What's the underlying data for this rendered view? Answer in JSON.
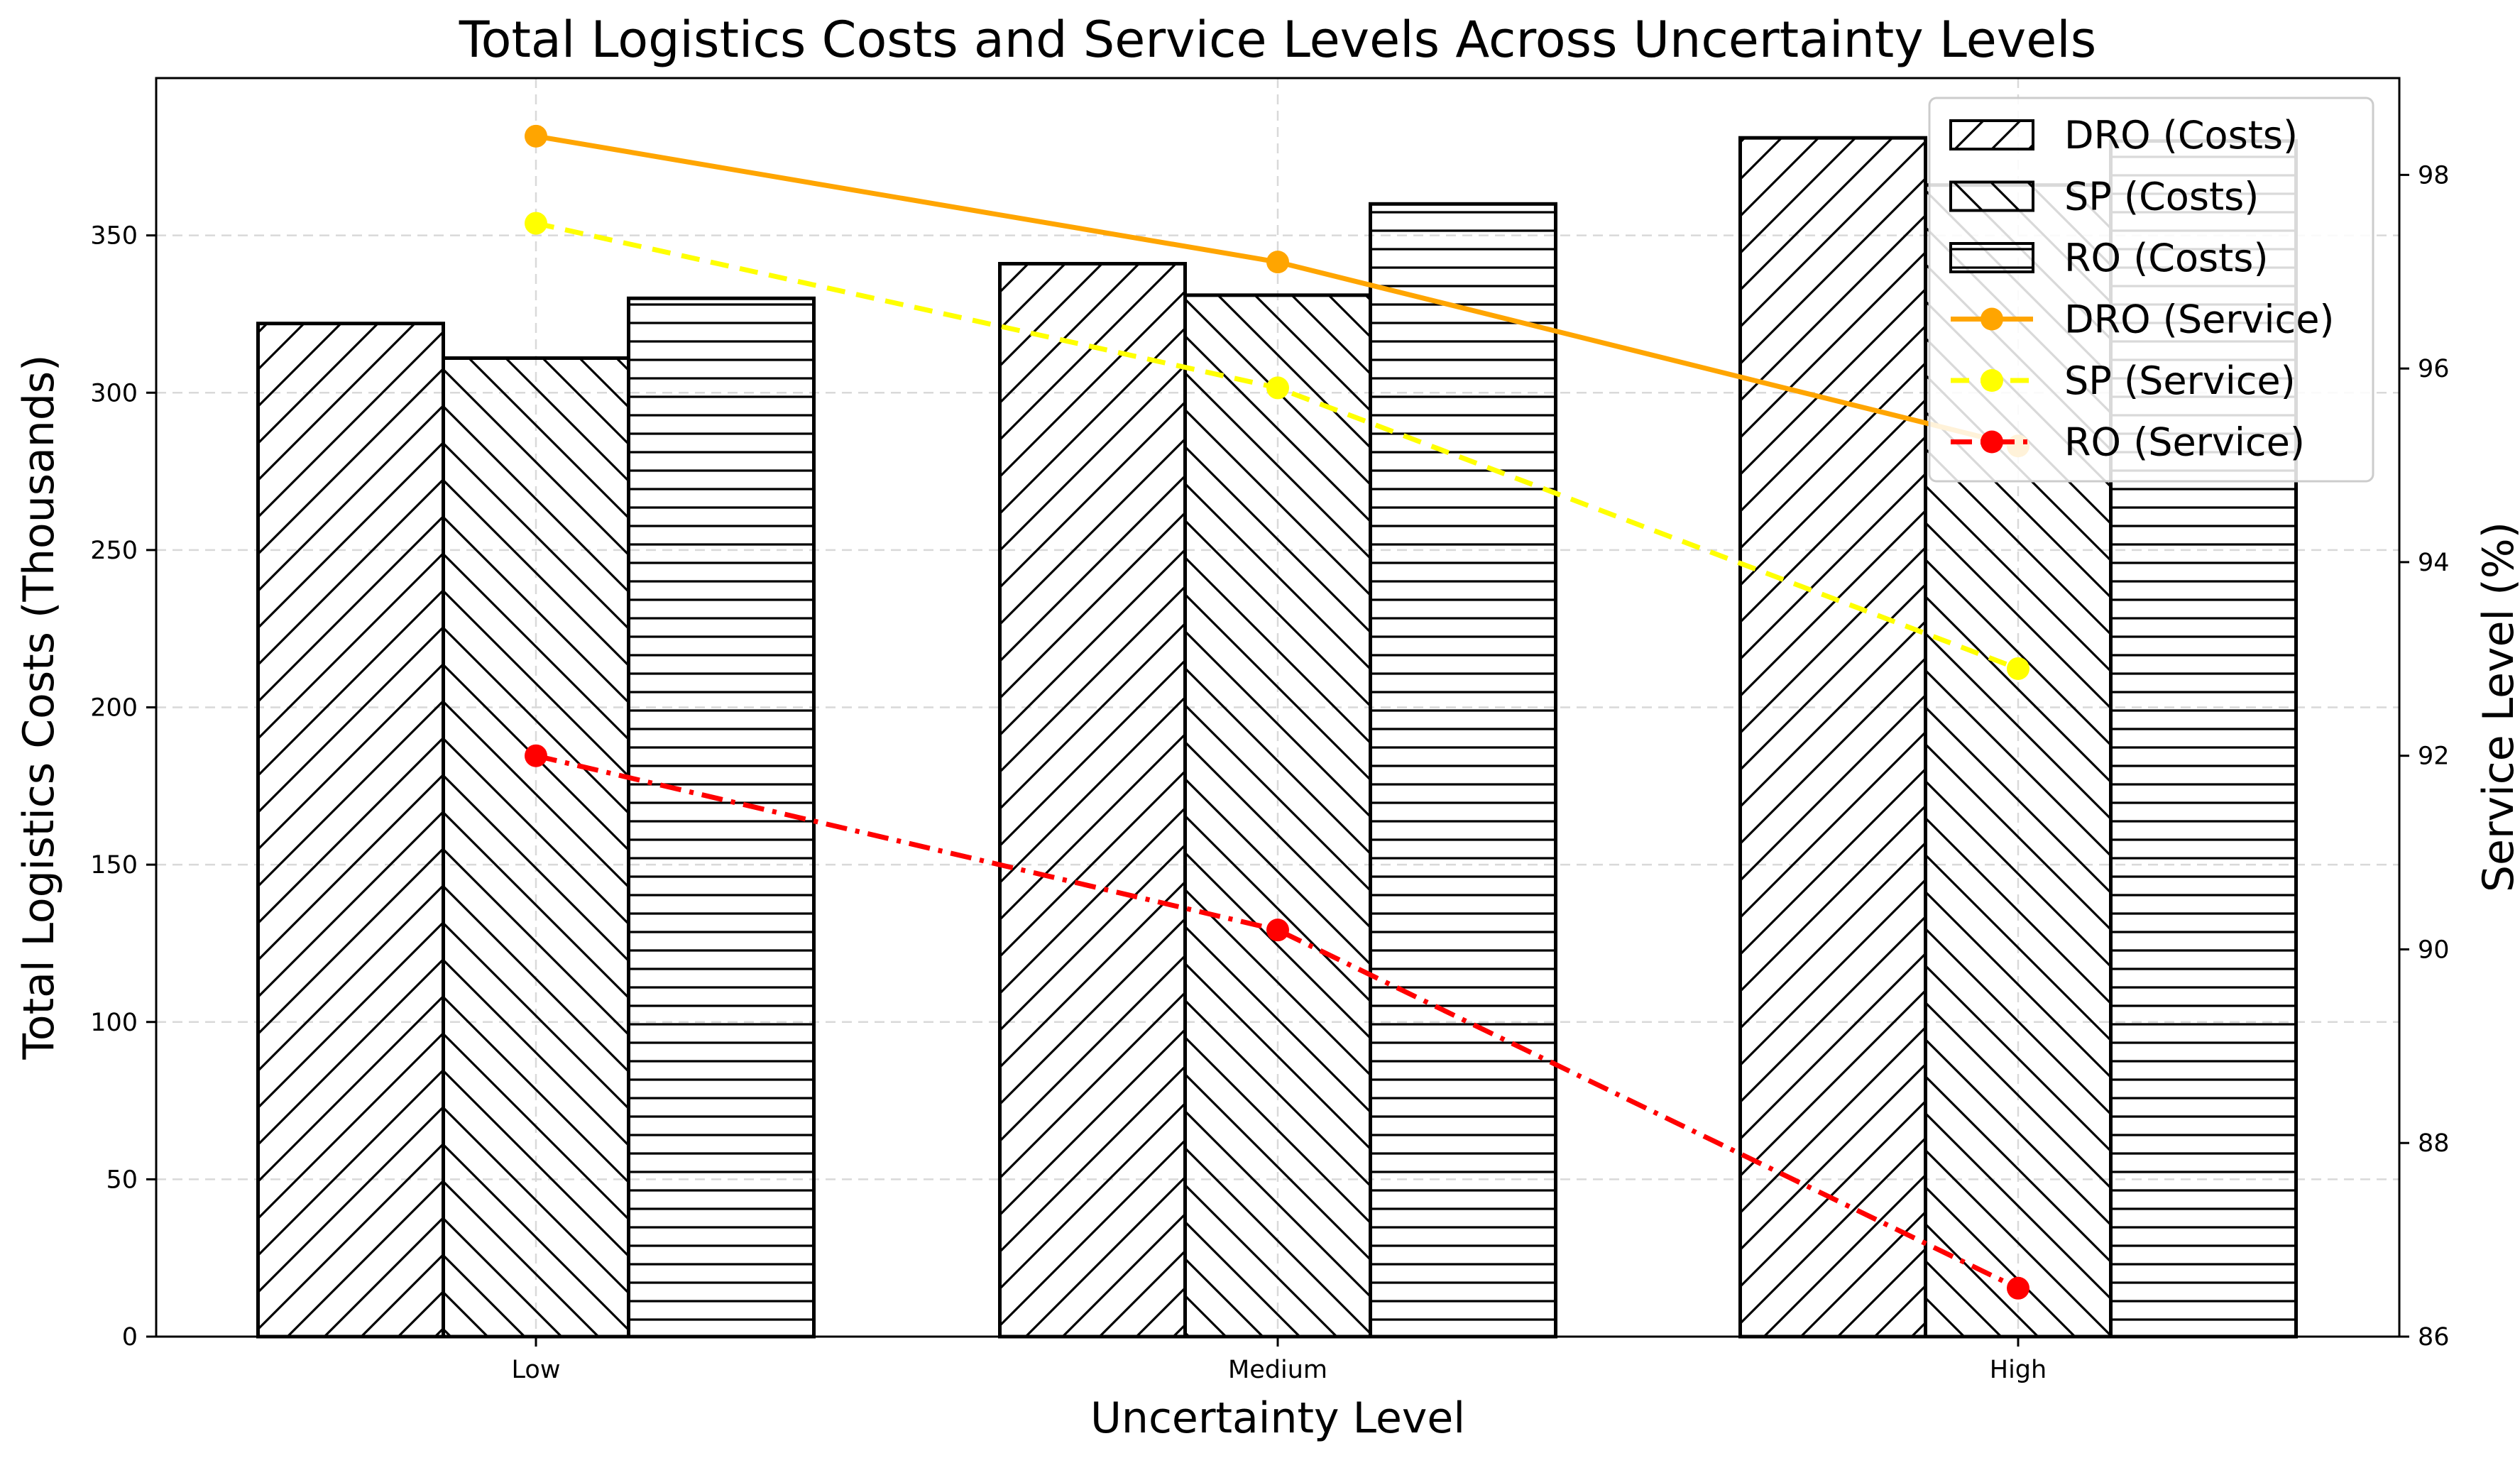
{
  "chart_data": {
    "type": "bar",
    "title": "Total Logistics Costs and Service Levels Across Uncertainty Levels",
    "xlabel": "Uncertainty Level",
    "ylabel": "Total Logistics Costs (Thousands)",
    "ylabel_right": "Service Level (%)",
    "categories": [
      "Low",
      "Medium",
      "High"
    ],
    "ylim": [
      0,
      400
    ],
    "yticks": [
      0,
      50,
      100,
      150,
      200,
      250,
      300,
      350
    ],
    "ylim_right": [
      86,
      99
    ],
    "yticks_right": [
      86,
      88,
      90,
      92,
      94,
      96,
      98
    ],
    "grid": true,
    "legend_position": "upper right",
    "bar_series": [
      {
        "name": "DRO (Costs)",
        "values": [
          322,
          341,
          381
        ],
        "hatch": "forward-diagonal"
      },
      {
        "name": "SP (Costs)",
        "values": [
          311,
          331,
          366
        ],
        "hatch": "back-diagonal"
      },
      {
        "name": "RO (Costs)",
        "values": [
          330,
          360,
          380
        ],
        "hatch": "horizontal"
      }
    ],
    "line_series": [
      {
        "name": "DRO (Service)",
        "values": [
          98.4,
          97.1,
          95.2
        ],
        "color": "#FFA500",
        "dash": "solid"
      },
      {
        "name": "SP (Service)",
        "values": [
          97.5,
          95.8,
          92.9
        ],
        "color": "#FFFF00",
        "dash": "dashed"
      },
      {
        "name": "RO (Service)",
        "values": [
          92.0,
          90.2,
          86.5
        ],
        "color": "#FF0000",
        "dash": "dashdot"
      }
    ]
  }
}
